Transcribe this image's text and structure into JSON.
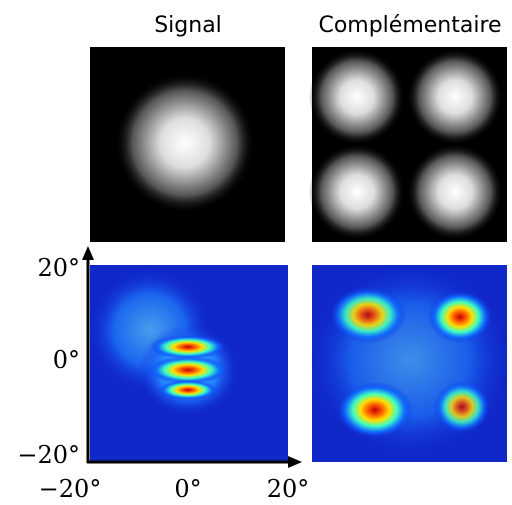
{
  "columns": [
    "Signal",
    "Complémentaire"
  ],
  "y_axis_labels": [
    "20°",
    "0°",
    "−20°"
  ],
  "x_axis_labels": [
    "−20°",
    "0°",
    "20°"
  ]
}
